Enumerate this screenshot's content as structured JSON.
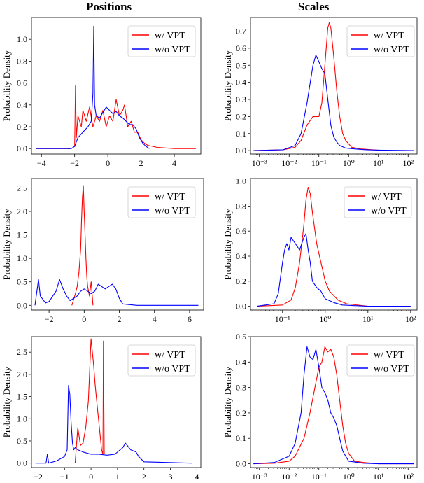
{
  "titles": {
    "positions": "Positions",
    "scales": "Scales"
  },
  "colors": {
    "with_vpt": "#ff0000",
    "without_vpt": "#0000ff"
  },
  "chart_data": [
    {
      "id": "pos1",
      "type": "line",
      "xscale": "linear",
      "xlim": [
        -4.6,
        5.6
      ],
      "ylim": [
        -0.05,
        1.2
      ],
      "xticks": [
        -4,
        -2,
        0,
        2,
        4
      ],
      "xtick_labels": [
        "−4",
        "−2",
        "0",
        "2",
        "4"
      ],
      "yticks": [
        0.0,
        0.2,
        0.4,
        0.6,
        0.8,
        1.0
      ],
      "ytick_labels": [
        "0.0",
        "0.2",
        "0.4",
        "0.6",
        "0.8",
        "1.0"
      ],
      "ylabel": "Probability Density",
      "legend": "top-right",
      "series": [
        {
          "name": "w/ VPT",
          "color": "red",
          "x": [
            -4.3,
            -2.2,
            -2.0,
            -1.95,
            -1.9,
            -1.8,
            -1.6,
            -1.5,
            -1.3,
            -1.1,
            -0.9,
            -0.7,
            -0.5,
            -0.3,
            -0.1,
            0.1,
            0.3,
            0.5,
            0.7,
            0.9,
            1.0,
            1.2,
            1.4,
            1.6,
            1.8,
            2.0,
            2.2,
            2.4,
            3.0,
            4.0,
            5.3
          ],
          "y": [
            0.0,
            0.0,
            0.02,
            0.58,
            0.1,
            0.3,
            0.2,
            0.35,
            0.25,
            0.38,
            0.2,
            0.3,
            0.25,
            0.35,
            0.2,
            0.3,
            0.25,
            0.45,
            0.3,
            0.35,
            0.4,
            0.2,
            0.25,
            0.15,
            0.15,
            0.08,
            0.05,
            0.03,
            0.01,
            0.0,
            0.0
          ]
        },
        {
          "name": "w/o VPT",
          "color": "blue",
          "x": [
            -4.3,
            -2.2,
            -2.0,
            -1.8,
            -1.5,
            -1.2,
            -1.0,
            -0.9,
            -0.85,
            -0.8,
            -0.7,
            -0.5,
            -0.3,
            -0.1,
            0.1,
            0.3,
            0.5,
            0.7,
            0.9,
            1.1,
            1.3,
            1.5,
            1.7,
            1.9,
            2.1,
            2.3,
            2.5
          ],
          "y": [
            0.0,
            0.0,
            0.02,
            0.1,
            0.15,
            0.2,
            0.25,
            0.5,
            1.12,
            0.4,
            0.3,
            0.28,
            0.33,
            0.38,
            0.35,
            0.32,
            0.34,
            0.3,
            0.28,
            0.25,
            0.22,
            0.22,
            0.18,
            0.1,
            0.05,
            0.02,
            0.0
          ]
        }
      ]
    },
    {
      "id": "sc1",
      "type": "line",
      "xscale": "log",
      "xlim": [
        -3.3,
        2.3
      ],
      "ylim": [
        -0.02,
        0.78
      ],
      "xticks": [
        -3,
        -2,
        -1,
        0,
        1,
        2
      ],
      "xtick_labels": [
        "10⁻³",
        "10⁻²",
        "10⁻¹",
        "10⁰",
        "10¹",
        "10²"
      ],
      "yticks": [
        0.0,
        0.1,
        0.2,
        0.3,
        0.4,
        0.5,
        0.6,
        0.7
      ],
      "ytick_labels": [
        "0.0",
        "0.1",
        "0.2",
        "0.3",
        "0.4",
        "0.5",
        "0.6",
        "0.7"
      ],
      "ylabel": "Probability Density",
      "legend": "top-right",
      "series": [
        {
          "name": "w/ VPT",
          "color": "red",
          "x": [
            -3.2,
            -2.2,
            -1.8,
            -1.6,
            -1.4,
            -1.2,
            -1.0,
            -0.9,
            -0.8,
            -0.7,
            -0.65,
            -0.6,
            -0.5,
            -0.4,
            -0.3,
            -0.2,
            -0.1,
            0.1,
            0.4,
            0.8,
            1.2,
            2.2
          ],
          "y": [
            0.0,
            0.005,
            0.02,
            0.06,
            0.15,
            0.2,
            0.2,
            0.28,
            0.5,
            0.72,
            0.75,
            0.72,
            0.55,
            0.35,
            0.2,
            0.1,
            0.06,
            0.02,
            0.01,
            0.005,
            0.0,
            0.0
          ]
        },
        {
          "name": "w/o VPT",
          "color": "blue",
          "x": [
            -3.2,
            -2.2,
            -1.8,
            -1.6,
            -1.4,
            -1.2,
            -1.1,
            -1.0,
            -0.9,
            -0.8,
            -0.7,
            -0.6,
            -0.5,
            -0.4,
            -0.3,
            -0.1,
            0.2,
            0.6,
            1.0,
            2.2
          ],
          "y": [
            0.0,
            0.005,
            0.03,
            0.1,
            0.28,
            0.5,
            0.56,
            0.52,
            0.48,
            0.45,
            0.3,
            0.15,
            0.08,
            0.05,
            0.03,
            0.015,
            0.01,
            0.005,
            0.003,
            0.0
          ]
        }
      ]
    },
    {
      "id": "pos2",
      "type": "line",
      "xscale": "linear",
      "xlim": [
        -3.0,
        6.8
      ],
      "ylim": [
        -0.1,
        2.7
      ],
      "xticks": [
        -2,
        0,
        2,
        4,
        6
      ],
      "xtick_labels": [
        "−2",
        "0",
        "2",
        "4",
        "6"
      ],
      "yticks": [
        0.0,
        0.5,
        1.0,
        1.5,
        2.0,
        2.5
      ],
      "ytick_labels": [
        "0.0",
        "0.5",
        "1.0",
        "1.5",
        "2.0",
        "2.5"
      ],
      "ylabel": "Probability Density",
      "legend": "top-right",
      "series": [
        {
          "name": "w/ VPT",
          "color": "red",
          "x": [
            -0.7,
            -0.5,
            -0.4,
            -0.3,
            -0.2,
            -0.15,
            -0.1,
            -0.05,
            0.0,
            0.05,
            0.1,
            0.15,
            0.2,
            0.3,
            0.4,
            0.5
          ],
          "y": [
            0.0,
            0.25,
            0.4,
            0.7,
            1.2,
            1.8,
            2.3,
            2.55,
            2.0,
            1.5,
            1.0,
            0.6,
            0.4,
            0.2,
            0.5,
            0.0
          ]
        },
        {
          "name": "w/o VPT",
          "color": "blue",
          "x": [
            -2.8,
            -2.6,
            -2.5,
            -2.4,
            -2.2,
            -2.0,
            -1.6,
            -1.4,
            -1.2,
            -1.0,
            -0.8,
            -0.6,
            -0.4,
            -0.2,
            0.0,
            0.2,
            0.4,
            0.6,
            0.8,
            1.0,
            1.2,
            1.4,
            1.6,
            1.8,
            2.0,
            2.2,
            3.0,
            6.5
          ],
          "y": [
            0.0,
            0.55,
            0.2,
            0.15,
            0.05,
            0.08,
            0.3,
            0.55,
            0.35,
            0.2,
            0.1,
            0.15,
            0.2,
            0.3,
            0.35,
            0.3,
            0.25,
            0.3,
            0.45,
            0.4,
            0.35,
            0.4,
            0.45,
            0.35,
            0.15,
            0.03,
            0.0,
            0.0
          ]
        }
      ]
    },
    {
      "id": "sc2",
      "type": "line",
      "xscale": "log",
      "xlim": [
        -1.75,
        2.15
      ],
      "ylim": [
        -0.03,
        1.02
      ],
      "xticks": [
        -1,
        0,
        1,
        2
      ],
      "xtick_labels": [
        "10⁻¹",
        "10⁰",
        "10¹",
        "10²"
      ],
      "yticks": [
        0.0,
        0.2,
        0.4,
        0.6,
        0.8,
        1.0
      ],
      "ytick_labels": [
        "0.0",
        "0.2",
        "0.4",
        "0.6",
        "0.8",
        "1.0"
      ],
      "ylabel": "Probability Density",
      "legend": "top-right",
      "series": [
        {
          "name": "w/ VPT",
          "color": "red",
          "x": [
            -1.6,
            -1.0,
            -0.8,
            -0.7,
            -0.6,
            -0.5,
            -0.45,
            -0.4,
            -0.35,
            -0.3,
            -0.2,
            -0.1,
            0.0,
            0.1,
            0.3,
            0.5,
            1.0,
            2.0
          ],
          "y": [
            0.0,
            0.01,
            0.05,
            0.15,
            0.35,
            0.65,
            0.85,
            0.95,
            0.9,
            0.75,
            0.5,
            0.35,
            0.2,
            0.12,
            0.05,
            0.02,
            0.0,
            0.0
          ]
        },
        {
          "name": "w/o VPT",
          "color": "blue",
          "x": [
            -1.6,
            -1.2,
            -1.1,
            -1.0,
            -0.95,
            -0.9,
            -0.85,
            -0.8,
            -0.7,
            -0.6,
            -0.5,
            -0.45,
            -0.4,
            -0.35,
            -0.3,
            -0.2,
            -0.1,
            0.0,
            0.2,
            0.4,
            1.0,
            2.0
          ],
          "y": [
            0.0,
            0.02,
            0.1,
            0.35,
            0.45,
            0.5,
            0.45,
            0.55,
            0.5,
            0.45,
            0.55,
            0.58,
            0.45,
            0.35,
            0.2,
            0.15,
            0.12,
            0.06,
            0.03,
            0.01,
            0.0,
            0.0
          ]
        }
      ]
    },
    {
      "id": "pos3",
      "type": "line",
      "xscale": "linear",
      "xlim": [
        -2.25,
        4.15
      ],
      "ylim": [
        -0.1,
        2.85
      ],
      "xticks": [
        -2,
        -1,
        0,
        1,
        2,
        3,
        4
      ],
      "xtick_labels": [
        "−2",
        "−1",
        "0",
        "1",
        "2",
        "3",
        "4"
      ],
      "yticks": [
        0.0,
        0.5,
        1.0,
        1.5,
        2.0,
        2.5
      ],
      "ytick_labels": [
        "0.0",
        "0.5",
        "1.0",
        "1.5",
        "2.0",
        "2.5"
      ],
      "ylabel": "Probability Density",
      "legend": "top-right",
      "series": [
        {
          "name": "w/ VPT",
          "color": "red",
          "x": [
            -0.6,
            -0.5,
            -0.4,
            -0.3,
            -0.2,
            -0.1,
            0.0,
            0.05,
            0.1,
            0.15,
            0.2,
            0.25,
            0.3,
            0.35,
            0.4,
            0.45,
            0.47,
            0.5
          ],
          "y": [
            0.0,
            0.8,
            0.4,
            0.45,
            0.8,
            1.4,
            2.8,
            2.5,
            2.2,
            1.8,
            1.5,
            1.2,
            0.9,
            0.6,
            0.3,
            0.2,
            2.75,
            0.2
          ]
        },
        {
          "name": "w/o VPT",
          "color": "blue",
          "x": [
            -2.1,
            -1.7,
            -1.65,
            -1.6,
            -1.3,
            -1.0,
            -0.9,
            -0.85,
            -0.8,
            -0.75,
            -0.7,
            -0.65,
            -0.6,
            -0.5,
            -0.3,
            0.0,
            0.3,
            0.6,
            0.9,
            1.2,
            1.3,
            1.5,
            1.7,
            1.8,
            2.0,
            3.8
          ],
          "y": [
            0.0,
            0.0,
            0.2,
            0.0,
            0.05,
            0.15,
            0.3,
            1.75,
            1.55,
            0.9,
            0.45,
            0.3,
            0.35,
            0.3,
            0.25,
            0.2,
            0.2,
            0.18,
            0.2,
            0.35,
            0.45,
            0.3,
            0.25,
            0.15,
            0.03,
            0.0
          ]
        }
      ]
    },
    {
      "id": "sc3",
      "type": "line",
      "xscale": "log",
      "xlim": [
        -3.3,
        2.3
      ],
      "ylim": [
        -0.015,
        0.5
      ],
      "xticks": [
        -3,
        -2,
        -1,
        0,
        1,
        2
      ],
      "xtick_labels": [
        "10⁻³",
        "10⁻²",
        "10⁻¹",
        "10⁰",
        "10¹",
        "10²"
      ],
      "yticks": [
        0.0,
        0.1,
        0.2,
        0.3,
        0.4,
        0.5
      ],
      "ytick_labels": [
        "0.0",
        "0.1",
        "0.2",
        "0.3",
        "0.4",
        "0.5"
      ],
      "ylabel": "Probability Density",
      "legend": "top-right",
      "series": [
        {
          "name": "w/ VPT",
          "color": "red",
          "x": [
            -3.2,
            -2.5,
            -2.0,
            -1.8,
            -1.5,
            -1.3,
            -1.1,
            -1.0,
            -0.9,
            -0.8,
            -0.7,
            -0.6,
            -0.5,
            -0.4,
            -0.3,
            -0.2,
            -0.1,
            0.0,
            0.2,
            0.5,
            1.0,
            2.2
          ],
          "y": [
            0.0,
            0.002,
            0.01,
            0.03,
            0.1,
            0.2,
            0.32,
            0.38,
            0.4,
            0.46,
            0.44,
            0.45,
            0.42,
            0.35,
            0.25,
            0.15,
            0.08,
            0.04,
            0.01,
            0.005,
            0.0,
            0.0
          ]
        },
        {
          "name": "w/o VPT",
          "color": "blue",
          "x": [
            -3.2,
            -2.5,
            -2.0,
            -1.8,
            -1.6,
            -1.5,
            -1.4,
            -1.3,
            -1.2,
            -1.1,
            -1.0,
            -0.9,
            -0.8,
            -0.7,
            -0.6,
            -0.5,
            -0.4,
            -0.3,
            -0.2,
            -0.1,
            0.0,
            0.5,
            1.0,
            2.2
          ],
          "y": [
            0.0,
            0.005,
            0.03,
            0.08,
            0.2,
            0.35,
            0.46,
            0.42,
            0.41,
            0.45,
            0.38,
            0.3,
            0.28,
            0.25,
            0.2,
            0.18,
            0.15,
            0.1,
            0.05,
            0.03,
            0.01,
            0.002,
            0.0,
            0.0
          ]
        }
      ]
    }
  ],
  "legend_labels": {
    "with_vpt": "w/ VPT",
    "without_vpt": "w/o VPT"
  }
}
